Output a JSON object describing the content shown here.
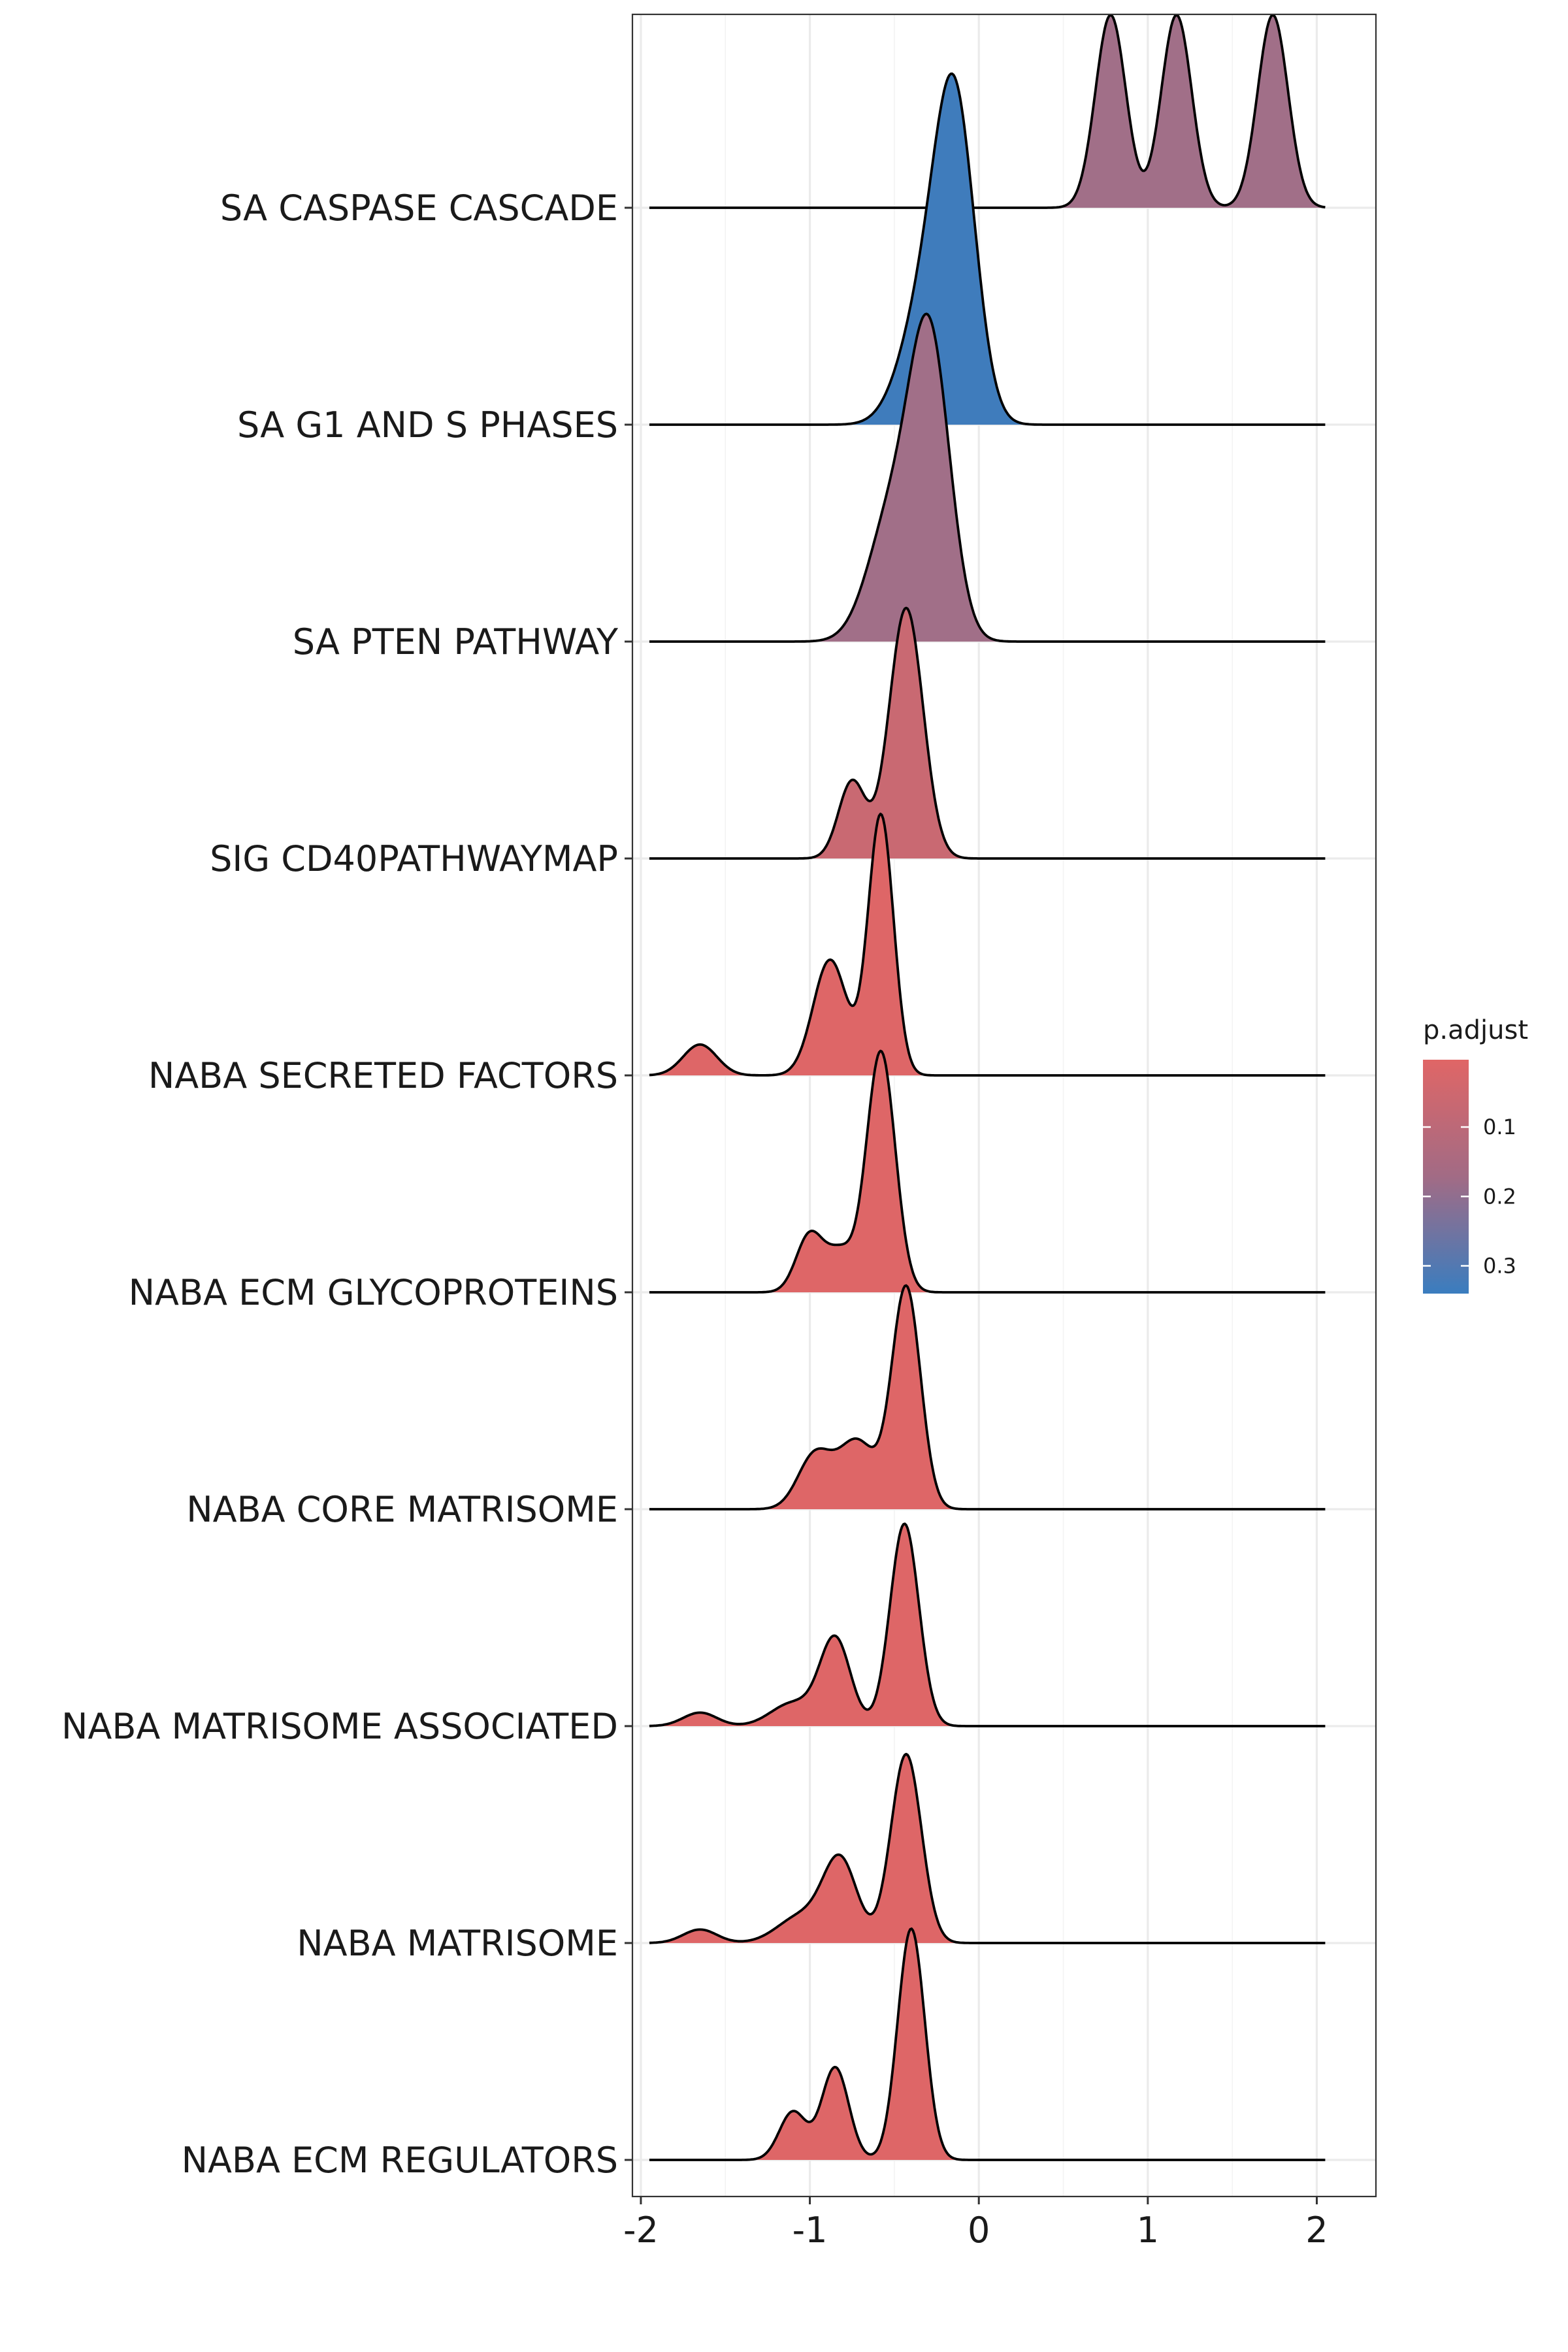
{
  "chart_data": {
    "type": "ridgeline",
    "title": "",
    "xlabel": "",
    "ylabel": "",
    "xlim": [
      -2.05,
      2.35
    ],
    "x_ticks": [
      -2,
      -1,
      0,
      1,
      2
    ],
    "x_tick_labels": [
      "-2",
      "-1",
      "0",
      "1",
      "2"
    ],
    "grid": true,
    "legend": {
      "title": "p.adjust",
      "position": "right",
      "colorbar_range": [
        0.003,
        0.34
      ],
      "ticks": [
        0.1,
        0.2,
        0.3
      ],
      "tick_labels": [
        "0.1",
        "0.2",
        "0.3"
      ],
      "low_color": "#E06666",
      "high_color": "#3A7DBF"
    },
    "x_support": [
      -1.95,
      2.05
    ],
    "series": [
      {
        "name": "SA CASPASE CASCADE",
        "p_adjust": 0.13,
        "peaks": [
          {
            "mu": 0.78,
            "sigma": 0.09,
            "h": 1.0
          },
          {
            "mu": 1.17,
            "sigma": 0.09,
            "h": 1.0
          },
          {
            "mu": 1.74,
            "sigma": 0.09,
            "h": 1.0
          }
        ]
      },
      {
        "name": "SA G1 AND S PHASES",
        "p_adjust": 0.33,
        "peaks": [
          {
            "mu": -0.14,
            "sigma": 0.12,
            "h": 1.58
          },
          {
            "mu": -0.33,
            "sigma": 0.14,
            "h": 0.55
          }
        ]
      },
      {
        "name": "SA PTEN PATHWAY",
        "p_adjust": 0.13,
        "peaks": [
          {
            "mu": -0.29,
            "sigma": 0.12,
            "h": 1.52
          },
          {
            "mu": -0.52,
            "sigma": 0.14,
            "h": 0.62
          }
        ]
      },
      {
        "name": "SIG CD40PATHWAYMAP",
        "p_adjust": 0.05,
        "peaks": [
          {
            "mu": -0.43,
            "sigma": 0.1,
            "h": 1.3
          },
          {
            "mu": -0.75,
            "sigma": 0.08,
            "h": 0.4
          }
        ]
      },
      {
        "name": "NABA SECRETED FACTORS",
        "p_adjust": 0.008,
        "peaks": [
          {
            "mu": -1.65,
            "sigma": 0.1,
            "h": 0.16
          },
          {
            "mu": -0.88,
            "sigma": 0.1,
            "h": 0.6
          },
          {
            "mu": -0.58,
            "sigma": 0.075,
            "h": 1.35
          }
        ]
      },
      {
        "name": "NABA ECM GLYCOPROTEINS",
        "p_adjust": 0.008,
        "peaks": [
          {
            "mu": -1.0,
            "sigma": 0.08,
            "h": 0.3
          },
          {
            "mu": -0.82,
            "sigma": 0.08,
            "h": 0.2
          },
          {
            "mu": -0.58,
            "sigma": 0.085,
            "h": 1.25
          }
        ]
      },
      {
        "name": "NABA CORE MATRISOME",
        "p_adjust": 0.008,
        "peaks": [
          {
            "mu": -0.97,
            "sigma": 0.1,
            "h": 0.28
          },
          {
            "mu": -0.72,
            "sigma": 0.11,
            "h": 0.35
          },
          {
            "mu": -0.43,
            "sigma": 0.085,
            "h": 1.15
          }
        ]
      },
      {
        "name": "NABA MATRISOME ASSOCIATED",
        "p_adjust": 0.008,
        "peaks": [
          {
            "mu": -1.65,
            "sigma": 0.1,
            "h": 0.07
          },
          {
            "mu": -1.1,
            "sigma": 0.13,
            "h": 0.12
          },
          {
            "mu": -0.85,
            "sigma": 0.09,
            "h": 0.45
          },
          {
            "mu": -0.44,
            "sigma": 0.085,
            "h": 1.05
          }
        ]
      },
      {
        "name": "NABA MATRISOME",
        "p_adjust": 0.008,
        "peaks": [
          {
            "mu": -1.65,
            "sigma": 0.1,
            "h": 0.07
          },
          {
            "mu": -1.05,
            "sigma": 0.14,
            "h": 0.14
          },
          {
            "mu": -0.82,
            "sigma": 0.1,
            "h": 0.42
          },
          {
            "mu": -0.43,
            "sigma": 0.09,
            "h": 0.98
          }
        ]
      },
      {
        "name": "NABA ECM REGULATORS",
        "p_adjust": 0.008,
        "peaks": [
          {
            "mu": -1.1,
            "sigma": 0.08,
            "h": 0.25
          },
          {
            "mu": -0.85,
            "sigma": 0.08,
            "h": 0.48
          },
          {
            "mu": -0.4,
            "sigma": 0.08,
            "h": 1.2
          }
        ]
      }
    ]
  }
}
